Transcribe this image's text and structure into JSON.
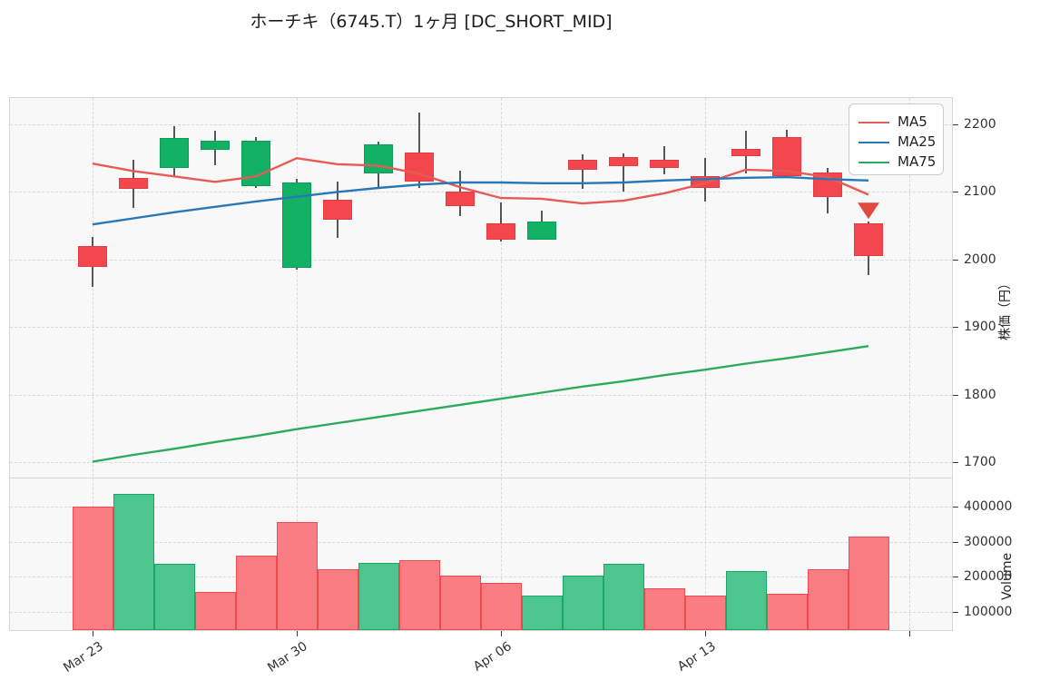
{
  "title": "ホーチキ（6745.T）1ヶ月 [DC_SHORT_MID]",
  "legend": [
    {
      "label": "MA5",
      "color": "#e65c54"
    },
    {
      "label": "MA25",
      "color": "#2878b8"
    },
    {
      "label": "MA75",
      "color": "#2cab5c"
    }
  ],
  "price_axis": {
    "label": "株価（円）",
    "ticks": [
      "2200",
      "2100",
      "2000",
      "1900",
      "1800",
      "1700"
    ],
    "range": [
      1676,
      2240
    ]
  },
  "volume_axis": {
    "label": "Volume",
    "ticks": [
      "400000",
      "300000",
      "200000",
      "100000"
    ],
    "range": [
      45000,
      481000
    ]
  },
  "x_axis": {
    "tick_labels": [
      "Mar 23",
      "Mar 30",
      "Apr 06",
      "Apr 13"
    ],
    "labeled_tick_indices": [
      0,
      5,
      10,
      15
    ],
    "unlabeled_tick_indices": [
      20
    ]
  },
  "colors": {
    "up": "#13b163",
    "up_border": "#0e9d56",
    "down": "#f4464d",
    "down_border": "#df3c44",
    "vol_up": "#4cc58e",
    "vol_up_border": "#19a763",
    "vol_down": "#f97d82",
    "vol_down_border": "#ef4a50",
    "wick": "#54585b",
    "ma5": "#e65c54",
    "ma25": "#2878b8",
    "ma75": "#2cab5c",
    "marker": "#e04a3e",
    "grid": "#d9d9dc",
    "panel_bg": "#f8f8f9",
    "spine": "#d6d6da",
    "text": "#333333"
  },
  "chart_data": {
    "type": "candlestick",
    "title": "ホーチキ（6745.T）1ヶ月 [DC_SHORT_MID]",
    "ylabel_price": "株価（円）",
    "ylabel_volume": "Volume",
    "price_ylim": [
      1676,
      2240
    ],
    "volume_ylim": [
      45000,
      481000
    ],
    "grid": "dashed",
    "legend_position": "upper right",
    "candles": [
      {
        "open": 2020,
        "high": 2033,
        "low": 1960,
        "close": 1989
      },
      {
        "open": 2121,
        "high": 2148,
        "low": 2077,
        "close": 2105
      },
      {
        "open": 2135,
        "high": 2197,
        "low": 2123,
        "close": 2180
      },
      {
        "open": 2162,
        "high": 2191,
        "low": 2140,
        "close": 2176
      },
      {
        "open": 2109,
        "high": 2181,
        "low": 2106,
        "close": 2176
      },
      {
        "open": 1988,
        "high": 2119,
        "low": 1985,
        "close": 2114
      },
      {
        "open": 2089,
        "high": 2116,
        "low": 2032,
        "close": 2059
      },
      {
        "open": 2127,
        "high": 2174,
        "low": 2105,
        "close": 2170
      },
      {
        "open": 2158,
        "high": 2217,
        "low": 2106,
        "close": 2115
      },
      {
        "open": 2101,
        "high": 2131,
        "low": 2064,
        "close": 2079
      },
      {
        "open": 2053,
        "high": 2084,
        "low": 2027,
        "close": 2030
      },
      {
        "open": 2030,
        "high": 2072,
        "low": 2029,
        "close": 2056
      },
      {
        "open": 2148,
        "high": 2156,
        "low": 2104,
        "close": 2133
      },
      {
        "open": 2152,
        "high": 2157,
        "low": 2100,
        "close": 2138
      },
      {
        "open": 2148,
        "high": 2168,
        "low": 2126,
        "close": 2136
      },
      {
        "open": 2123,
        "high": 2150,
        "low": 2086,
        "close": 2106
      },
      {
        "open": 2164,
        "high": 2190,
        "low": 2127,
        "close": 2153
      },
      {
        "open": 2181,
        "high": 2192,
        "low": 2122,
        "close": 2123
      },
      {
        "open": 2129,
        "high": 2135,
        "low": 2068,
        "close": 2092
      },
      {
        "open": 2054,
        "high": 2056,
        "low": 1977,
        "close": 2005
      }
    ],
    "volumes": [
      402000,
      437000,
      237000,
      156000,
      261000,
      356000,
      222000,
      239000,
      248000,
      203000,
      183000,
      146000,
      203000,
      237000,
      168000,
      146000,
      216000,
      152000,
      222000,
      314000
    ],
    "series": [
      {
        "name": "MA5",
        "values": [
          2142,
          2131,
          2123,
          2115,
          2123,
          2150,
          2141,
          2139,
          2127,
          2107,
          2091,
          2090,
          2083,
          2087,
          2098,
          2113,
          2133,
          2131,
          2122,
          2096
        ]
      },
      {
        "name": "MA25",
        "values": [
          2052,
          2061,
          2070,
          2078,
          2086,
          2093,
          2100,
          2106,
          2111,
          2114,
          2114,
          2113,
          2113,
          2114,
          2117,
          2119,
          2121,
          2122,
          2119,
          2117
        ]
      },
      {
        "name": "MA75",
        "values": [
          1701,
          1711,
          1720,
          1730,
          1739,
          1749,
          1758,
          1767,
          1776,
          1785,
          1794,
          1803,
          1812,
          1820,
          1829,
          1837,
          1846,
          1854,
          1863,
          1872
        ]
      }
    ],
    "signal_marker": {
      "candle_index": 19,
      "price": 2072,
      "shape": "triangle-down"
    }
  }
}
